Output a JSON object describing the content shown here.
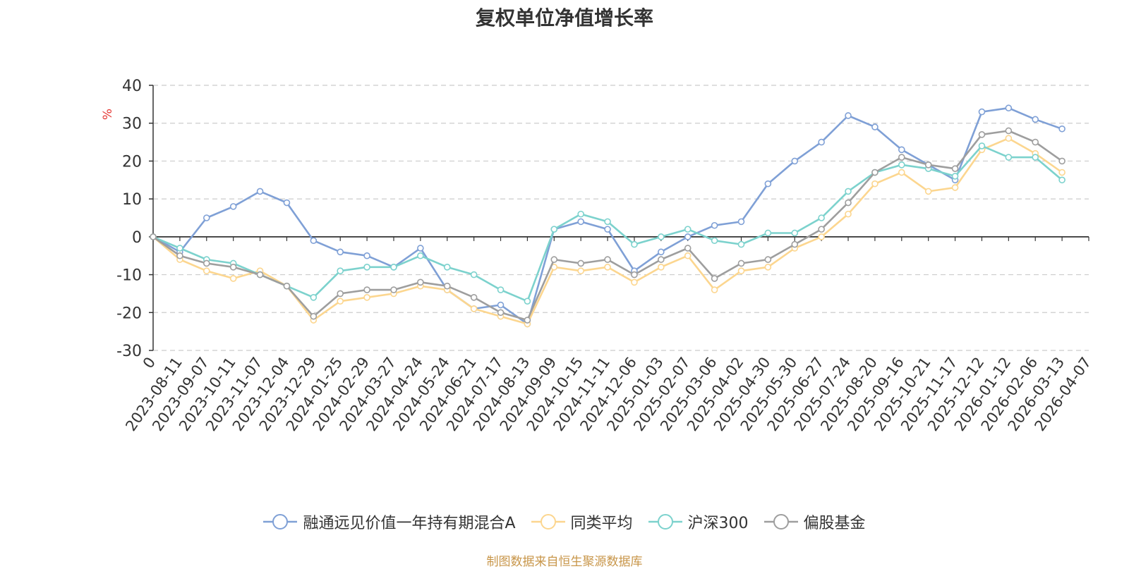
{
  "chart_data": {
    "type": "line",
    "title": "复权单位净值增长率",
    "ylabel": "%",
    "ylim": [
      -30,
      40
    ],
    "yticks": [
      "-30",
      "-20",
      "-10",
      "0",
      "10",
      "20",
      "30",
      "40"
    ],
    "yticks_values": [
      -30,
      -20,
      -10,
      0,
      10,
      20,
      30,
      40
    ],
    "x_start_label": "0",
    "x": [
      "2023-08-11",
      "2023-09-07",
      "2023-10-11",
      "2023-11-07",
      "2023-12-04",
      "2023-12-29",
      "2024-01-25",
      "2024-02-29",
      "2024-03-27",
      "2024-04-24",
      "2024-05-24",
      "2024-06-21",
      "2024-07-17",
      "2024-08-13",
      "2024-09-09",
      "2024-10-15",
      "2024-11-11",
      "2024-12-06",
      "2025-01-03",
      "2025-02-07",
      "2025-03-06",
      "2025-04-02",
      "2025-04-30",
      "2025-05-30",
      "2025-06-27",
      "2025-07-24",
      "2025-08-20",
      "2025-09-16",
      "2025-10-21",
      "2025-11-17",
      "2025-12-12",
      "2026-01-12",
      "2026-02-06",
      "2026-03-13",
      "2026-04-07"
    ],
    "grid": true,
    "legend_position": "bottom",
    "series": [
      {
        "name": "融通远见价值一年持有期混合A",
        "color": "#7fa0d6",
        "values": [
          0,
          -4,
          5,
          8,
          12,
          9,
          -1,
          -4,
          -5,
          -8,
          -3,
          -14,
          -19,
          -18,
          -23,
          2,
          4,
          2,
          -9,
          -4,
          0,
          3,
          4,
          14,
          20,
          25,
          32,
          29,
          23,
          19,
          15,
          33,
          34,
          31,
          28.5
        ]
      },
      {
        "name": "同类平均",
        "color": "#fcd68f",
        "values": [
          0,
          -6,
          -9,
          -11,
          -9,
          -13,
          -22,
          -17,
          -16,
          -15,
          -13,
          -14,
          -19,
          -21,
          -23,
          -8,
          -9,
          -8,
          -12,
          -8,
          -5,
          -14,
          -9,
          -8,
          -3,
          0,
          6,
          14,
          17,
          12,
          13,
          23,
          26,
          22,
          17
        ]
      },
      {
        "name": "沪深300",
        "color": "#7cd2cd",
        "values": [
          0,
          -3,
          -6,
          -7,
          -10,
          -13,
          -16,
          -9,
          -8,
          -8,
          -5,
          -8,
          -10,
          -14,
          -17,
          2,
          6,
          4,
          -2,
          0,
          2,
          -1,
          -2,
          1,
          1,
          5,
          12,
          17,
          19,
          18,
          16,
          24,
          21,
          21,
          15
        ]
      },
      {
        "name": "偏股基金",
        "color": "#9e9e9e",
        "values": [
          0,
          -5,
          -7,
          -8,
          -10,
          -13,
          -21,
          -15,
          -14,
          -14,
          -12,
          -13,
          -16,
          -20,
          -22,
          -6,
          -7,
          -6,
          -10,
          -6,
          -3,
          -11,
          -7,
          -6,
          -2,
          2,
          9,
          17,
          21,
          19,
          18,
          27,
          28,
          25,
          20
        ]
      }
    ]
  },
  "footer": {
    "source_note": "制图数据来自恒生聚源数据库"
  }
}
